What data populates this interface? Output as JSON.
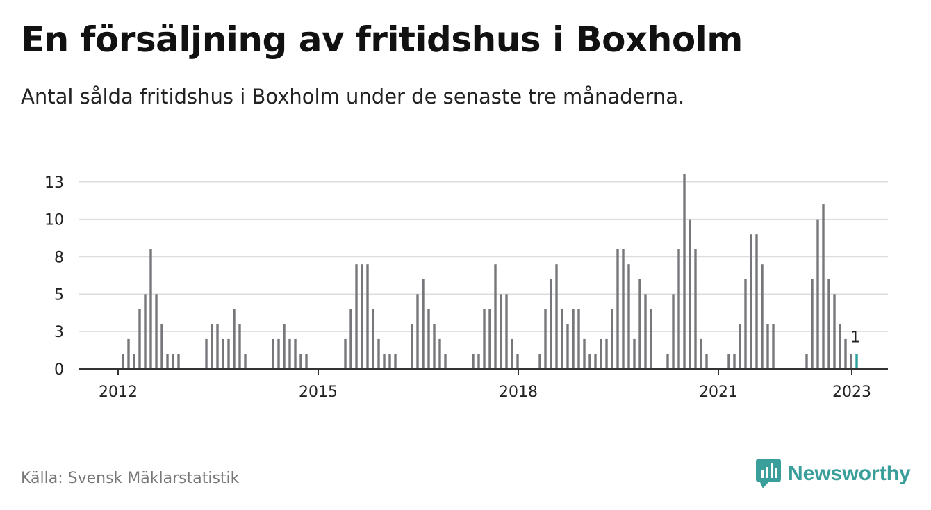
{
  "header": {
    "title": "En försäljning av fritidshus i Boxholm",
    "subtitle": "Antal sålda fritidshus i Boxholm under de senaste tre månaderna."
  },
  "footer": {
    "source": "Källa: Svensk Mäklarstatistik",
    "brand": "Newsworthy"
  },
  "colors": {
    "bar": "#77777b",
    "highlight": "#2aa09a",
    "grid": "#dddddd",
    "axis": "#333333",
    "brand": "#3a9e9a"
  },
  "chart_data": {
    "type": "bar",
    "title": "En försäljning av fritidshus i Boxholm",
    "subtitle": "Antal sålda fritidshus i Boxholm under de senaste tre månaderna.",
    "x_ticks": [
      "2012",
      "2015",
      "2018",
      "2021",
      "2023"
    ],
    "y_ticks": [
      "0",
      "3",
      "5",
      "8",
      "10",
      "13"
    ],
    "y_tick_values": [
      0,
      2.5,
      5,
      7.5,
      10,
      12.5
    ],
    "ylim": [
      0,
      13
    ],
    "grid": true,
    "start": "2012-01",
    "frequency": "monthly",
    "values": [
      1,
      2,
      1,
      4,
      5,
      8,
      5,
      3,
      1,
      1,
      1,
      null,
      null,
      null,
      null,
      2,
      3,
      3,
      2,
      2,
      4,
      3,
      1,
      null,
      null,
      null,
      null,
      2,
      2,
      3,
      2,
      2,
      1,
      1,
      null,
      null,
      null,
      null,
      null,
      null,
      2,
      4,
      7,
      7,
      7,
      4,
      2,
      1,
      1,
      1,
      null,
      null,
      3,
      5,
      6,
      4,
      3,
      2,
      1,
      null,
      null,
      null,
      null,
      1,
      1,
      4,
      4,
      7,
      5,
      5,
      2,
      1,
      null,
      null,
      null,
      1,
      4,
      6,
      7,
      4,
      3,
      4,
      4,
      2,
      1,
      1,
      2,
      2,
      4,
      8,
      8,
      7,
      2,
      6,
      5,
      4,
      null,
      null,
      1,
      5,
      8,
      13,
      10,
      8,
      2,
      1,
      null,
      null,
      null,
      1,
      1,
      3,
      6,
      9,
      9,
      7,
      3,
      3,
      null,
      null,
      null,
      null,
      null,
      1,
      6,
      10,
      11,
      6,
      5,
      3,
      2,
      1,
      1
    ],
    "highlight_label": "1"
  }
}
